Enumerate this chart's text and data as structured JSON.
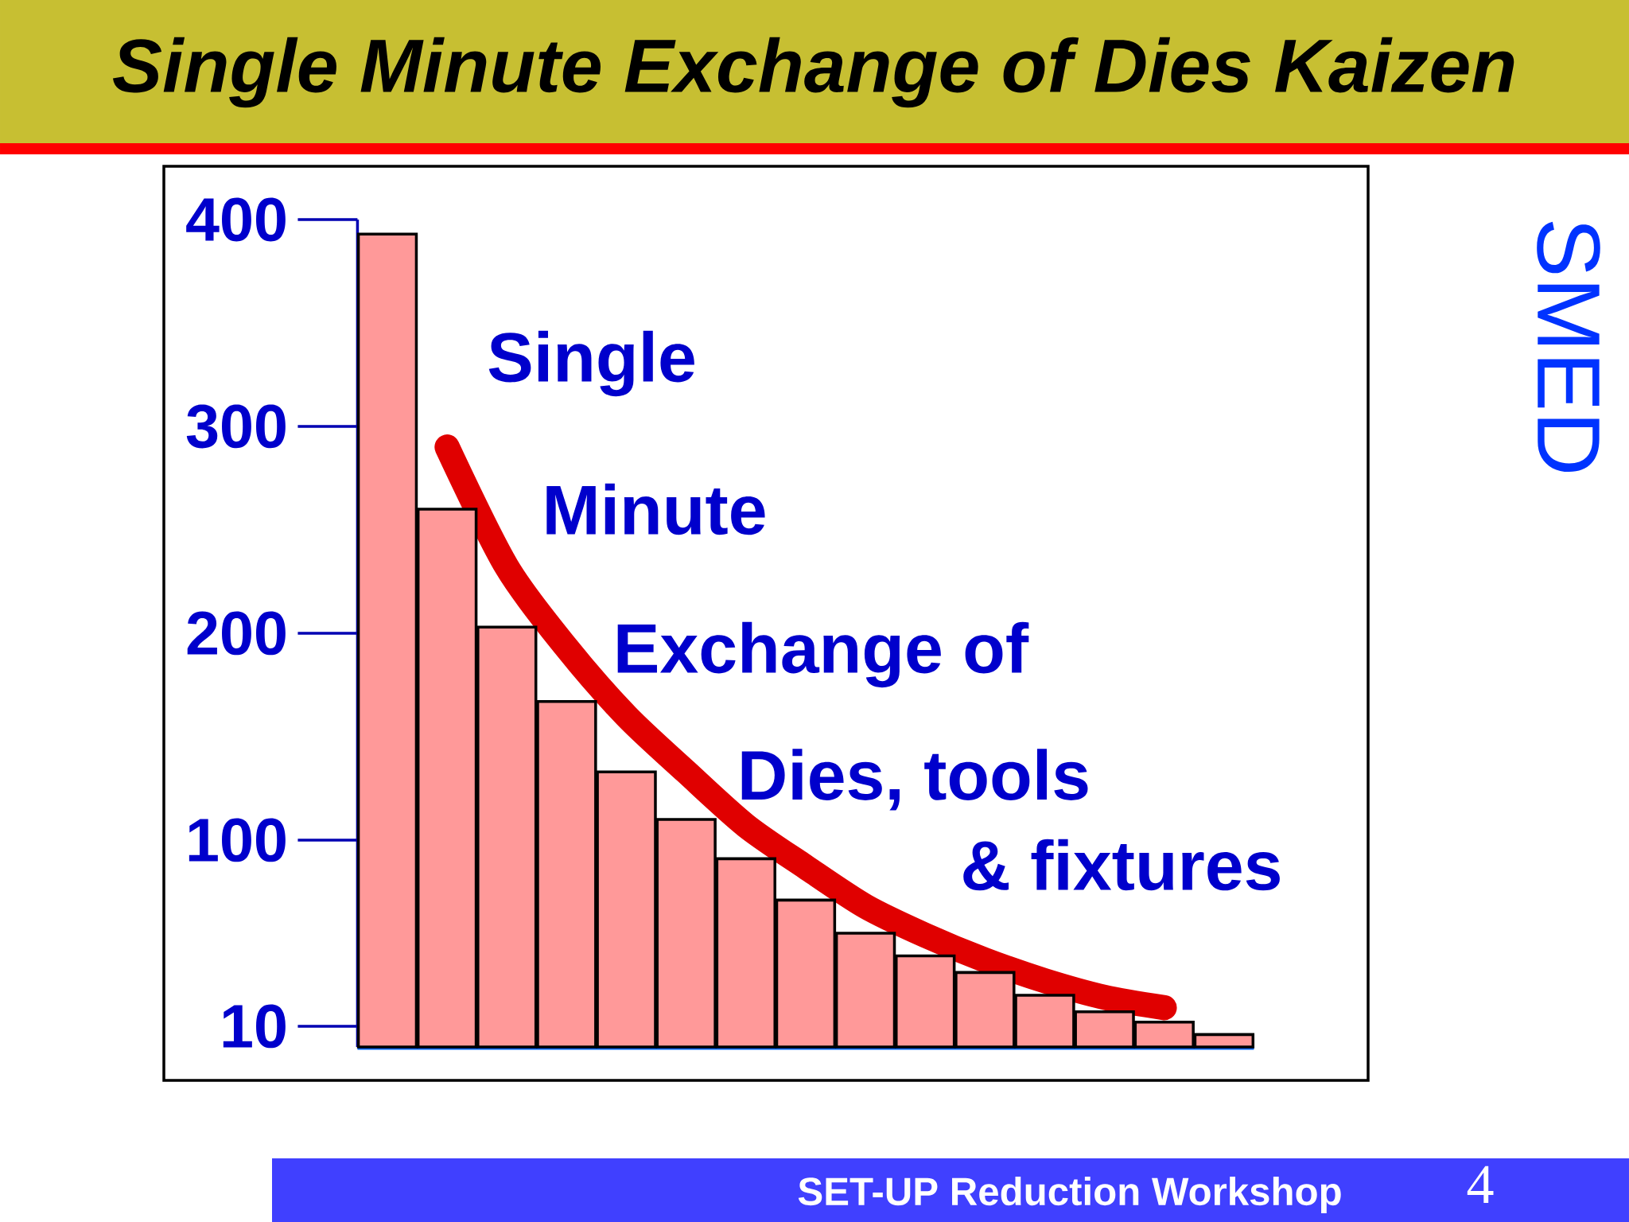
{
  "chart_data": {
    "type": "bar",
    "title": "Single Minute Exchange of Dies Kaizen",
    "categories": [
      null,
      null,
      null,
      null,
      null,
      null,
      null,
      null,
      null,
      null,
      null,
      null,
      null,
      null,
      null
    ],
    "ylim": [
      0,
      400
    ],
    "yticks": [
      10,
      100,
      200,
      300,
      400
    ],
    "tick_labels": "y",
    "series": [
      {
        "type": "line",
        "color": "#e00000",
        "values": [
          null,
          290,
          232,
          193,
          160,
          133,
          107,
          87,
          68,
          54,
          42,
          32,
          24,
          19,
          null
        ]
      },
      {
        "color": "#ff9999",
        "values": [
          393,
          260,
          203,
          167,
          133,
          110,
          91,
          71,
          55,
          44,
          36,
          25,
          17,
          12,
          6
        ]
      }
    ],
    "annotations": [
      "Single",
      "Minute",
      "Exchange of",
      "Dies, tools",
      "& fixtures",
      "SMED",
      "SET-UP Reduction Workshop",
      "4"
    ]
  }
}
